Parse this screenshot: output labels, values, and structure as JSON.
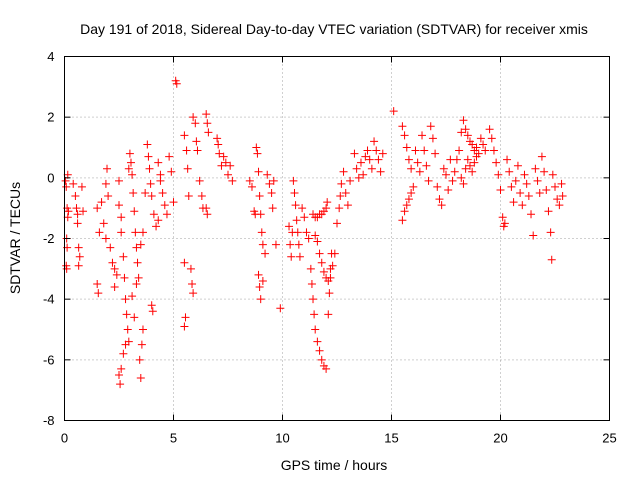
{
  "chart_data": {
    "type": "scatter",
    "title": "Day 191 of 2018, Sidereal Day-to-day VTEC variation (SDTVAR) for receiver xmis",
    "xlabel": "GPS time / hours",
    "ylabel": "SDTVAR / TECUs",
    "xlim": [
      0,
      25
    ],
    "ylim": [
      -8,
      4
    ],
    "xticks": [
      0,
      5,
      10,
      15,
      20,
      25
    ],
    "yticks": [
      -8,
      -6,
      -4,
      -2,
      0,
      2,
      4
    ],
    "xtick_labels": [
      "0",
      "5",
      "10",
      "15",
      "20",
      "25"
    ],
    "ytick_labels": [
      "-8",
      "-6",
      "-4",
      "-2",
      "0",
      "2",
      "4"
    ],
    "grid": true,
    "marker": "+",
    "series": [
      {
        "name": "SDTVAR",
        "color": "#ff0000",
        "points": [
          [
            0.05,
            -0.1
          ],
          [
            0.08,
            -0.3
          ],
          [
            0.12,
            -1.0
          ],
          [
            0.15,
            -1.3
          ],
          [
            0.1,
            -2.0
          ],
          [
            0.12,
            -2.3
          ],
          [
            0.08,
            -2.9
          ],
          [
            0.1,
            -3.0
          ],
          [
            0.15,
            0.1
          ],
          [
            0.18,
            -1.1
          ],
          [
            0.4,
            -0.2
          ],
          [
            0.5,
            -0.6
          ],
          [
            0.55,
            -1.0
          ],
          [
            0.6,
            -1.2
          ],
          [
            0.6,
            -1.5
          ],
          [
            0.65,
            -2.3
          ],
          [
            0.7,
            -2.6
          ],
          [
            0.65,
            -2.9
          ],
          [
            0.8,
            -0.3
          ],
          [
            0.85,
            -1.1
          ],
          [
            1.5,
            -1.0
          ],
          [
            1.6,
            -1.8
          ],
          [
            1.5,
            -3.5
          ],
          [
            1.55,
            -3.8
          ],
          [
            1.7,
            -0.8
          ],
          [
            1.8,
            -1.5
          ],
          [
            1.9,
            -2.0
          ],
          [
            1.9,
            -0.2
          ],
          [
            1.95,
            0.3
          ],
          [
            2.0,
            -0.6
          ],
          [
            2.1,
            -2.3
          ],
          [
            2.2,
            -2.8
          ],
          [
            2.3,
            -3.0
          ],
          [
            2.3,
            -3.6
          ],
          [
            2.4,
            -3.2
          ],
          [
            2.5,
            -0.1
          ],
          [
            2.5,
            -0.9
          ],
          [
            2.6,
            -1.3
          ],
          [
            2.6,
            -1.8
          ],
          [
            2.7,
            -2.6
          ],
          [
            2.75,
            -3.3
          ],
          [
            2.8,
            -4.0
          ],
          [
            2.85,
            -4.5
          ],
          [
            2.9,
            -5.0
          ],
          [
            2.95,
            -5.4
          ],
          [
            2.5,
            -6.5
          ],
          [
            2.55,
            -6.8
          ],
          [
            2.6,
            -6.3
          ],
          [
            2.7,
            -5.8
          ],
          [
            2.8,
            -5.5
          ],
          [
            2.95,
            0.3
          ],
          [
            3.0,
            0.8
          ],
          [
            3.05,
            0.5
          ],
          [
            3.1,
            0.1
          ],
          [
            3.15,
            -0.5
          ],
          [
            3.2,
            -1.1
          ],
          [
            3.25,
            -1.8
          ],
          [
            3.3,
            -2.3
          ],
          [
            3.35,
            -2.8
          ],
          [
            3.4,
            -3.3
          ],
          [
            3.45,
            -6.0
          ],
          [
            3.5,
            -6.6
          ],
          [
            3.55,
            -5.5
          ],
          [
            3.6,
            -5.0
          ],
          [
            3.1,
            -3.9
          ],
          [
            3.2,
            -4.6
          ],
          [
            3.3,
            -3.5
          ],
          [
            3.5,
            -2.2
          ],
          [
            3.6,
            -1.8
          ],
          [
            3.7,
            -0.5
          ],
          [
            3.8,
            1.1
          ],
          [
            3.85,
            0.7
          ],
          [
            3.9,
            0.3
          ],
          [
            3.95,
            -0.2
          ],
          [
            4.0,
            -0.6
          ],
          [
            4.0,
            -4.2
          ],
          [
            4.05,
            -4.4
          ],
          [
            4.1,
            -1.2
          ],
          [
            4.2,
            -1.6
          ],
          [
            4.3,
            -1.4
          ],
          [
            4.3,
            0.5
          ],
          [
            4.4,
            -0.1
          ],
          [
            4.5,
            -0.5
          ],
          [
            4.6,
            -0.9
          ],
          [
            4.7,
            -1.2
          ],
          [
            4.4,
            0.1
          ],
          [
            4.8,
            0.7
          ],
          [
            4.9,
            0.2
          ],
          [
            5.0,
            -0.8
          ],
          [
            5.1,
            3.2
          ],
          [
            5.15,
            3.1
          ],
          [
            5.5,
            1.4
          ],
          [
            5.6,
            0.9
          ],
          [
            5.65,
            0.3
          ],
          [
            5.7,
            -0.6
          ],
          [
            5.5,
            -2.8
          ],
          [
            5.55,
            -4.6
          ],
          [
            5.5,
            -4.9
          ],
          [
            5.8,
            -3.0
          ],
          [
            5.85,
            -3.5
          ],
          [
            5.9,
            -3.8
          ],
          [
            5.9,
            2.0
          ],
          [
            6.0,
            1.8
          ],
          [
            6.05,
            1.2
          ],
          [
            6.1,
            0.9
          ],
          [
            6.2,
            -0.1
          ],
          [
            6.3,
            -0.6
          ],
          [
            6.35,
            -1.0
          ],
          [
            6.5,
            2.1
          ],
          [
            6.55,
            1.8
          ],
          [
            6.6,
            1.5
          ],
          [
            6.5,
            -1.0
          ],
          [
            6.55,
            -1.2
          ],
          [
            7.0,
            1.3
          ],
          [
            7.05,
            1.1
          ],
          [
            7.1,
            0.8
          ],
          [
            7.2,
            0.4
          ],
          [
            7.3,
            0.7
          ],
          [
            7.4,
            0.5
          ],
          [
            7.5,
            0.1
          ],
          [
            7.6,
            0.4
          ],
          [
            7.7,
            -0.1
          ],
          [
            8.5,
            -0.1
          ],
          [
            8.6,
            -0.3
          ],
          [
            8.7,
            -1.1
          ],
          [
            8.75,
            -1.2
          ],
          [
            8.8,
            1.0
          ],
          [
            8.85,
            0.8
          ],
          [
            8.9,
            0.2
          ],
          [
            8.95,
            -0.6
          ],
          [
            9.0,
            -1.2
          ],
          [
            9.05,
            -1.8
          ],
          [
            9.1,
            -2.2
          ],
          [
            8.9,
            -3.2
          ],
          [
            8.95,
            -3.6
          ],
          [
            9.0,
            -4.0
          ],
          [
            9.1,
            -3.4
          ],
          [
            9.2,
            -2.5
          ],
          [
            9.3,
            0.1
          ],
          [
            9.4,
            -0.2
          ],
          [
            9.5,
            -0.5
          ],
          [
            9.55,
            -1.0
          ],
          [
            9.6,
            -0.1
          ],
          [
            9.7,
            -2.2
          ],
          [
            9.9,
            -4.3
          ],
          [
            10.3,
            -1.6
          ],
          [
            10.35,
            -2.2
          ],
          [
            10.4,
            -2.6
          ],
          [
            10.45,
            -1.8
          ],
          [
            10.5,
            -0.1
          ],
          [
            10.55,
            -0.5
          ],
          [
            10.6,
            -0.9
          ],
          [
            10.65,
            -1.4
          ],
          [
            10.7,
            -1.8
          ],
          [
            10.75,
            -2.2
          ],
          [
            10.8,
            -2.6
          ],
          [
            10.9,
            -1.0
          ],
          [
            11.0,
            -1.3
          ],
          [
            11.1,
            -1.8
          ],
          [
            11.2,
            -2.0
          ],
          [
            11.3,
            -3.0
          ],
          [
            11.35,
            -3.5
          ],
          [
            11.4,
            -4.0
          ],
          [
            11.45,
            -4.5
          ],
          [
            11.5,
            -5.0
          ],
          [
            11.6,
            -5.4
          ],
          [
            11.7,
            -5.7
          ],
          [
            11.8,
            -6.0
          ],
          [
            11.9,
            -6.2
          ],
          [
            12.0,
            -6.3
          ],
          [
            11.5,
            -1.9
          ],
          [
            11.6,
            -2.1
          ],
          [
            11.7,
            -2.5
          ],
          [
            11.8,
            -2.8
          ],
          [
            11.9,
            -3.1
          ],
          [
            12.0,
            -3.3
          ],
          [
            12.1,
            -3.4
          ],
          [
            12.2,
            -3.3
          ],
          [
            12.3,
            -2.9
          ],
          [
            12.4,
            -2.5
          ],
          [
            11.4,
            -1.2
          ],
          [
            11.5,
            -1.3
          ],
          [
            11.6,
            -1.3
          ],
          [
            11.7,
            -1.2
          ],
          [
            11.8,
            -1.2
          ],
          [
            11.9,
            -1.1
          ],
          [
            12.0,
            -1.0
          ],
          [
            12.05,
            -0.8
          ],
          [
            12.1,
            -4.5
          ],
          [
            12.15,
            -3.8
          ],
          [
            12.2,
            -3.0
          ],
          [
            12.25,
            -2.5
          ],
          [
            12.5,
            -1.5
          ],
          [
            12.6,
            -1.0
          ],
          [
            12.65,
            -0.6
          ],
          [
            12.7,
            -0.2
          ],
          [
            12.8,
            0.2
          ],
          [
            12.9,
            -0.5
          ],
          [
            13.0,
            -0.9
          ],
          [
            13.1,
            -0.1
          ],
          [
            13.3,
            0.8
          ],
          [
            13.4,
            0.3
          ],
          [
            13.5,
            0.0
          ],
          [
            13.6,
            0.5
          ],
          [
            13.7,
            0.1
          ],
          [
            13.8,
            0.7
          ],
          [
            13.9,
            0.9
          ],
          [
            14.0,
            0.6
          ],
          [
            14.1,
            0.3
          ],
          [
            14.2,
            1.2
          ],
          [
            14.3,
            0.9
          ],
          [
            14.4,
            0.6
          ],
          [
            14.5,
            0.2
          ],
          [
            14.6,
            0.8
          ],
          [
            15.1,
            2.2
          ],
          [
            15.5,
            1.7
          ],
          [
            15.6,
            1.4
          ],
          [
            15.7,
            1.0
          ],
          [
            15.8,
            0.6
          ],
          [
            15.9,
            0.3
          ],
          [
            15.5,
            -1.4
          ],
          [
            15.6,
            -1.1
          ],
          [
            15.7,
            -0.9
          ],
          [
            15.8,
            -0.7
          ],
          [
            15.9,
            -0.5
          ],
          [
            16.0,
            -0.3
          ],
          [
            16.1,
            0.9
          ],
          [
            16.2,
            0.5
          ],
          [
            16.3,
            0.2
          ],
          [
            16.4,
            1.4
          ],
          [
            16.5,
            0.9
          ],
          [
            16.6,
            0.4
          ],
          [
            16.7,
            -0.1
          ],
          [
            16.8,
            1.7
          ],
          [
            16.9,
            1.3
          ],
          [
            17.0,
            0.8
          ],
          [
            17.1,
            -0.3
          ],
          [
            17.2,
            -0.7
          ],
          [
            17.3,
            -0.9
          ],
          [
            17.4,
            0.3
          ],
          [
            17.5,
            0.1
          ],
          [
            17.6,
            -0.4
          ],
          [
            17.7,
            0.6
          ],
          [
            17.8,
            -0.1
          ],
          [
            17.9,
            0.2
          ],
          [
            18.0,
            0.6
          ],
          [
            18.1,
            0.9
          ],
          [
            18.2,
            1.5
          ],
          [
            18.3,
            1.9
          ],
          [
            18.4,
            1.6
          ],
          [
            18.5,
            1.4
          ],
          [
            18.6,
            1.2
          ],
          [
            18.7,
            1.1
          ],
          [
            18.8,
            0.9
          ],
          [
            18.9,
            1.0
          ],
          [
            19.0,
            0.8
          ],
          [
            19.1,
            1.3
          ],
          [
            19.2,
            1.1
          ],
          [
            19.3,
            0.9
          ],
          [
            18.2,
            0.0
          ],
          [
            18.3,
            -0.2
          ],
          [
            18.4,
            0.3
          ],
          [
            18.5,
            0.6
          ],
          [
            18.6,
            0.4
          ],
          [
            18.7,
            0.2
          ],
          [
            18.8,
            0.5
          ],
          [
            18.9,
            0.7
          ],
          [
            19.5,
            1.6
          ],
          [
            19.6,
            1.3
          ],
          [
            19.7,
            0.9
          ],
          [
            19.8,
            0.5
          ],
          [
            19.9,
            0.1
          ],
          [
            20.0,
            -0.4
          ],
          [
            20.1,
            -1.3
          ],
          [
            20.15,
            -1.6
          ],
          [
            20.2,
            -1.5
          ],
          [
            20.3,
            0.6
          ],
          [
            20.4,
            0.2
          ],
          [
            20.5,
            -0.3
          ],
          [
            20.6,
            -0.8
          ],
          [
            20.7,
            -0.1
          ],
          [
            20.8,
            0.4
          ],
          [
            20.9,
            -0.5
          ],
          [
            21.0,
            -0.9
          ],
          [
            21.1,
            0.1
          ],
          [
            21.2,
            -0.2
          ],
          [
            21.3,
            -0.6
          ],
          [
            21.4,
            -1.2
          ],
          [
            21.5,
            -1.9
          ],
          [
            21.6,
            0.3
          ],
          [
            21.7,
            -0.1
          ],
          [
            21.8,
            -0.5
          ],
          [
            21.9,
            0.7
          ],
          [
            22.0,
            0.2
          ],
          [
            22.1,
            -0.4
          ],
          [
            22.2,
            -1.1
          ],
          [
            22.3,
            -1.8
          ],
          [
            22.35,
            -2.7
          ],
          [
            22.4,
            0.1
          ],
          [
            22.5,
            -0.3
          ],
          [
            22.6,
            -0.7
          ],
          [
            22.7,
            -0.9
          ],
          [
            22.8,
            -0.2
          ],
          [
            22.85,
            -0.6
          ]
        ]
      }
    ]
  }
}
